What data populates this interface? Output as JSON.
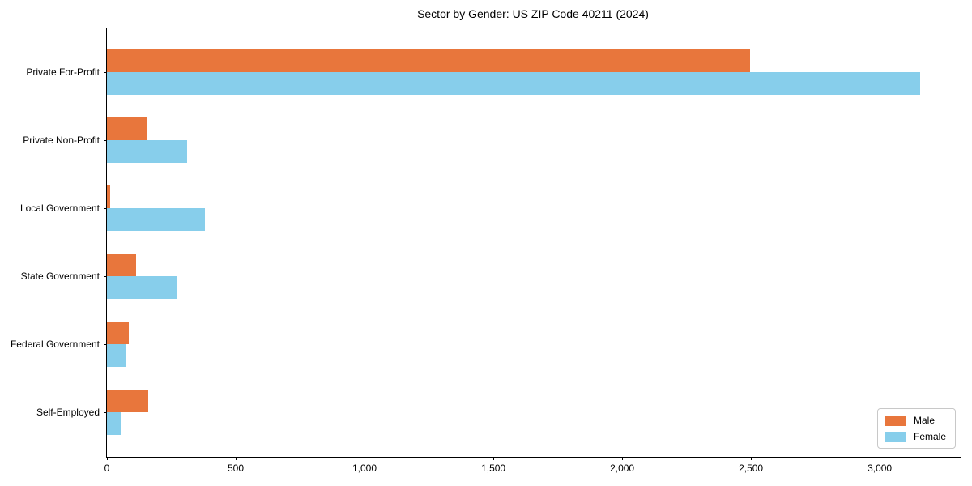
{
  "chart_data": {
    "type": "bar",
    "orientation": "horizontal",
    "title": "Sector by Gender: US ZIP Code 40211 (2024)",
    "xlabel": "",
    "ylabel": "",
    "grid": false,
    "categories": [
      "Private For-Profit",
      "Private Non-Profit",
      "Local Government",
      "State Government",
      "Federal Government",
      "Self-Employed"
    ],
    "series": [
      {
        "name": "Male",
        "color": "#e8763c",
        "values": [
          2495,
          157,
          12,
          114,
          86,
          161
        ]
      },
      {
        "name": "Female",
        "color": "#87ceeb",
        "values": [
          3158,
          310,
          380,
          272,
          73,
          53
        ]
      }
    ],
    "xlim": [
      0,
      3314
    ],
    "xticks": [
      {
        "value": 0,
        "label": "0"
      },
      {
        "value": 500,
        "label": "500"
      },
      {
        "value": 1000,
        "label": "1,000"
      },
      {
        "value": 1500,
        "label": "1,500"
      },
      {
        "value": 2000,
        "label": "2,000"
      },
      {
        "value": 2500,
        "label": "2,500"
      },
      {
        "value": 3000,
        "label": "3,000"
      }
    ],
    "legend": {
      "position": "lower right",
      "entries": [
        "Male",
        "Female"
      ]
    }
  }
}
